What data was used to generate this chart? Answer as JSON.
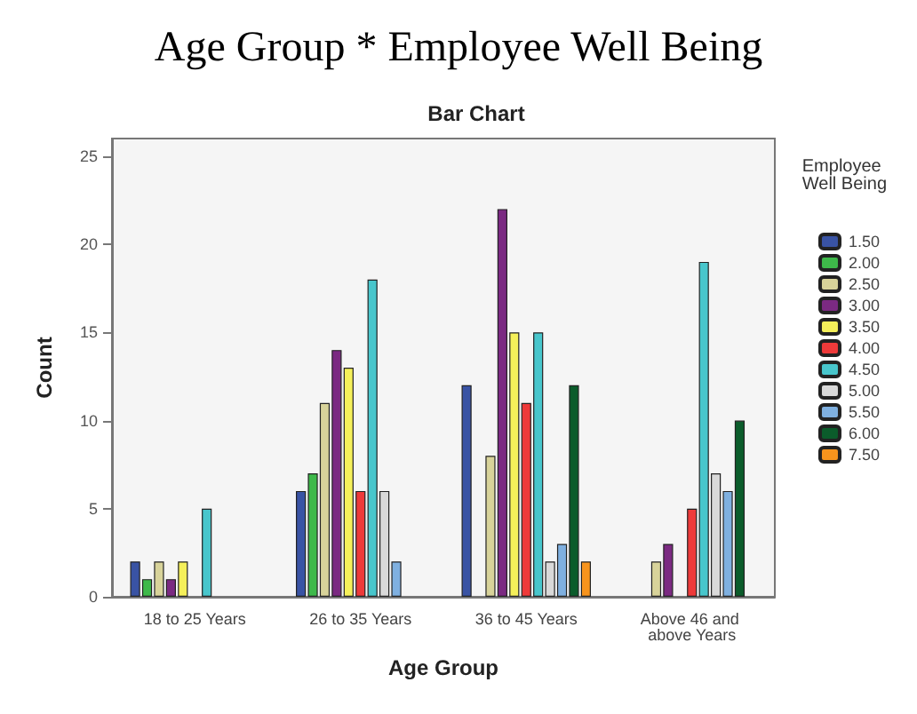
{
  "chart_data": {
    "type": "bar",
    "title": "Age Group * Employee Well Being",
    "subtitle": "Bar Chart",
    "xlabel": "Age Group",
    "ylabel": "Count",
    "legend_title": "Employee Well Being",
    "legend": "right",
    "grid": false,
    "categories": [
      "18 to 25 Years",
      "26 to 35 Years",
      "36 to 45 Years",
      "Above 46 and above Years"
    ],
    "ylim": [
      0,
      26
    ],
    "yticks": [
      0,
      5,
      10,
      15,
      20,
      25
    ],
    "series": [
      {
        "name": "1.50",
        "color": "#3953a4",
        "values": [
          2,
          6,
          12,
          null
        ]
      },
      {
        "name": "2.00",
        "color": "#3eb94a",
        "values": [
          1,
          7,
          null,
          null
        ]
      },
      {
        "name": "2.50",
        "color": "#d8d39a",
        "values": [
          2,
          11,
          8,
          2
        ]
      },
      {
        "name": "3.00",
        "color": "#7b2a82",
        "values": [
          1,
          14,
          22,
          3
        ]
      },
      {
        "name": "3.50",
        "color": "#f5f05a",
        "values": [
          2,
          13,
          15,
          null
        ]
      },
      {
        "name": "4.00",
        "color": "#ee3a3a",
        "values": [
          null,
          6,
          11,
          5
        ]
      },
      {
        "name": "4.50",
        "color": "#48c6cc",
        "values": [
          5,
          18,
          15,
          19
        ]
      },
      {
        "name": "5.00",
        "color": "#d9d9d9",
        "values": [
          null,
          6,
          2,
          7
        ]
      },
      {
        "name": "5.50",
        "color": "#7fb0e0",
        "values": [
          null,
          2,
          3,
          6
        ]
      },
      {
        "name": "6.00",
        "color": "#0b5c2b",
        "values": [
          null,
          null,
          12,
          10
        ]
      },
      {
        "name": "7.50",
        "color": "#f7941d",
        "values": [
          null,
          null,
          2,
          null
        ]
      }
    ]
  }
}
